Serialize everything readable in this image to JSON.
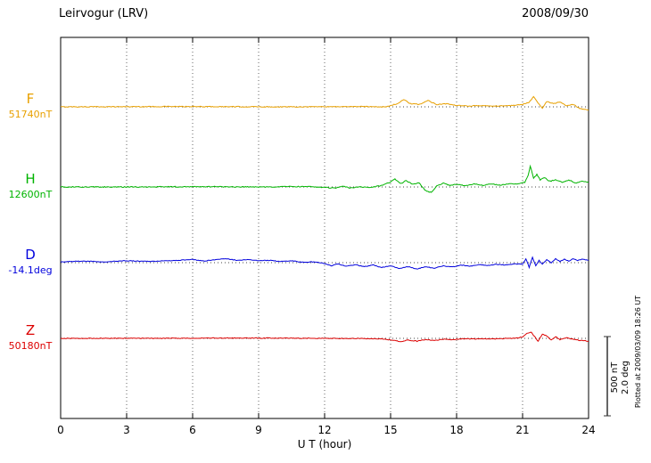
{
  "chart_data": {
    "type": "line",
    "title": "Leirvogur (LRV)",
    "date": "2008/09/30",
    "xlabel": "U T (hour)",
    "x_range": [
      0,
      24
    ],
    "x_ticks": [
      0,
      3,
      6,
      9,
      12,
      15,
      18,
      21,
      24
    ],
    "grid": "vertical-dotted",
    "scale_bar": {
      "nT": 500,
      "deg": 2.0,
      "labels": [
        "500 nT",
        "2.0 deg"
      ]
    },
    "plotted_at": "Plotted at 2009/03/09 18:26 UT",
    "series": [
      {
        "id": "F",
        "label": "F",
        "value_label": "51740nT",
        "unit": "nT",
        "color": "#e8a000",
        "noise": 2.5,
        "points": [
          [
            0,
            0
          ],
          [
            5,
            2
          ],
          [
            10,
            0
          ],
          [
            14,
            2
          ],
          [
            14.8,
            0
          ],
          [
            15.3,
            20
          ],
          [
            15.6,
            45
          ],
          [
            15.9,
            20
          ],
          [
            16.3,
            15
          ],
          [
            16.7,
            40
          ],
          [
            17.1,
            15
          ],
          [
            17.5,
            20
          ],
          [
            18,
            8
          ],
          [
            18.5,
            5
          ],
          [
            19,
            8
          ],
          [
            19.5,
            5
          ],
          [
            20,
            6
          ],
          [
            20.5,
            8
          ],
          [
            21,
            15
          ],
          [
            21.3,
            30
          ],
          [
            21.5,
            65
          ],
          [
            21.7,
            25
          ],
          [
            21.9,
            -10
          ],
          [
            22.1,
            35
          ],
          [
            22.4,
            20
          ],
          [
            22.7,
            30
          ],
          [
            23,
            5
          ],
          [
            23.3,
            15
          ],
          [
            23.6,
            -10
          ],
          [
            24,
            -20
          ]
        ]
      },
      {
        "id": "H",
        "label": "H",
        "value_label": "12600nT",
        "unit": "nT",
        "color": "#00b400",
        "noise": 3,
        "points": [
          [
            0,
            0
          ],
          [
            3,
            0
          ],
          [
            6,
            2
          ],
          [
            9,
            0
          ],
          [
            11,
            3
          ],
          [
            12,
            -2
          ],
          [
            12.5,
            -8
          ],
          [
            12.8,
            4
          ],
          [
            13.2,
            -6
          ],
          [
            13.6,
            2
          ],
          [
            14,
            -4
          ],
          [
            14.5,
            6
          ],
          [
            14.9,
            25
          ],
          [
            15.2,
            50
          ],
          [
            15.45,
            20
          ],
          [
            15.7,
            40
          ],
          [
            16,
            15
          ],
          [
            16.3,
            25
          ],
          [
            16.6,
            -25
          ],
          [
            16.85,
            -35
          ],
          [
            17.1,
            5
          ],
          [
            17.4,
            25
          ],
          [
            17.7,
            10
          ],
          [
            18,
            18
          ],
          [
            18.4,
            8
          ],
          [
            18.8,
            20
          ],
          [
            19.2,
            10
          ],
          [
            19.6,
            18
          ],
          [
            20,
            12
          ],
          [
            20.4,
            20
          ],
          [
            20.8,
            18
          ],
          [
            21.1,
            30
          ],
          [
            21.25,
            75
          ],
          [
            21.35,
            130
          ],
          [
            21.5,
            55
          ],
          [
            21.65,
            80
          ],
          [
            21.8,
            45
          ],
          [
            22,
            60
          ],
          [
            22.2,
            35
          ],
          [
            22.5,
            45
          ],
          [
            22.8,
            30
          ],
          [
            23.1,
            45
          ],
          [
            23.4,
            25
          ],
          [
            23.7,
            35
          ],
          [
            24,
            30
          ]
        ]
      },
      {
        "id": "D",
        "label": "D",
        "value_label": "-14.1deg",
        "unit": "deg",
        "color": "#0000dd",
        "noise": 0.008,
        "points": [
          [
            0,
            0.02
          ],
          [
            1,
            0.04
          ],
          [
            2,
            0.02
          ],
          [
            3,
            0.05
          ],
          [
            4,
            0.03
          ],
          [
            5,
            0.05
          ],
          [
            6,
            0.08
          ],
          [
            6.5,
            0.04
          ],
          [
            7,
            0.07
          ],
          [
            7.5,
            0.1
          ],
          [
            8,
            0.06
          ],
          [
            8.5,
            0.08
          ],
          [
            9,
            0.05
          ],
          [
            9.5,
            0.06
          ],
          [
            10,
            0.03
          ],
          [
            10.5,
            0.05
          ],
          [
            11,
            0.01
          ],
          [
            11.5,
            0.02
          ],
          [
            12,
            -0.02
          ],
          [
            12.3,
            -0.08
          ],
          [
            12.6,
            -0.03
          ],
          [
            13,
            -0.09
          ],
          [
            13.4,
            -0.05
          ],
          [
            13.8,
            -0.1
          ],
          [
            14.2,
            -0.06
          ],
          [
            14.6,
            -0.12
          ],
          [
            15,
            -0.08
          ],
          [
            15.4,
            -0.15
          ],
          [
            15.8,
            -0.1
          ],
          [
            16.2,
            -0.16
          ],
          [
            16.6,
            -0.1
          ],
          [
            17,
            -0.14
          ],
          [
            17.4,
            -0.08
          ],
          [
            17.8,
            -0.11
          ],
          [
            18.2,
            -0.06
          ],
          [
            18.6,
            -0.09
          ],
          [
            19,
            -0.05
          ],
          [
            19.4,
            -0.07
          ],
          [
            19.8,
            -0.04
          ],
          [
            20.2,
            -0.06
          ],
          [
            20.6,
            -0.03
          ],
          [
            21,
            -0.04
          ],
          [
            21.15,
            0.1
          ],
          [
            21.3,
            -0.12
          ],
          [
            21.45,
            0.14
          ],
          [
            21.6,
            -0.08
          ],
          [
            21.75,
            0.06
          ],
          [
            21.9,
            -0.04
          ],
          [
            22.1,
            0.08
          ],
          [
            22.3,
            0
          ],
          [
            22.5,
            0.1
          ],
          [
            22.7,
            0.03
          ],
          [
            22.9,
            0.09
          ],
          [
            23.1,
            0.04
          ],
          [
            23.3,
            0.1
          ],
          [
            23.5,
            0.05
          ],
          [
            23.7,
            0.09
          ],
          [
            24,
            0.06
          ]
        ]
      },
      {
        "id": "Z",
        "label": "Z",
        "value_label": "50180nT",
        "unit": "nT",
        "color": "#dc0000",
        "noise": 2.5,
        "points": [
          [
            0,
            0
          ],
          [
            4,
            0
          ],
          [
            8,
            2
          ],
          [
            12,
            0
          ],
          [
            14,
            -2
          ],
          [
            14.7,
            -4
          ],
          [
            15.1,
            -12
          ],
          [
            15.5,
            -20
          ],
          [
            15.8,
            -10
          ],
          [
            16.2,
            -18
          ],
          [
            16.6,
            -8
          ],
          [
            17,
            -14
          ],
          [
            17.4,
            -5
          ],
          [
            17.8,
            -8
          ],
          [
            18.2,
            -3
          ],
          [
            19,
            -4
          ],
          [
            20,
            -2
          ],
          [
            20.6,
            0
          ],
          [
            21,
            8
          ],
          [
            21.2,
            30
          ],
          [
            21.4,
            38
          ],
          [
            21.55,
            10
          ],
          [
            21.7,
            -18
          ],
          [
            21.9,
            25
          ],
          [
            22.1,
            15
          ],
          [
            22.3,
            -12
          ],
          [
            22.5,
            10
          ],
          [
            22.7,
            -8
          ],
          [
            23,
            3
          ],
          [
            23.3,
            -5
          ],
          [
            23.6,
            -12
          ],
          [
            24,
            -18
          ]
        ]
      }
    ]
  }
}
